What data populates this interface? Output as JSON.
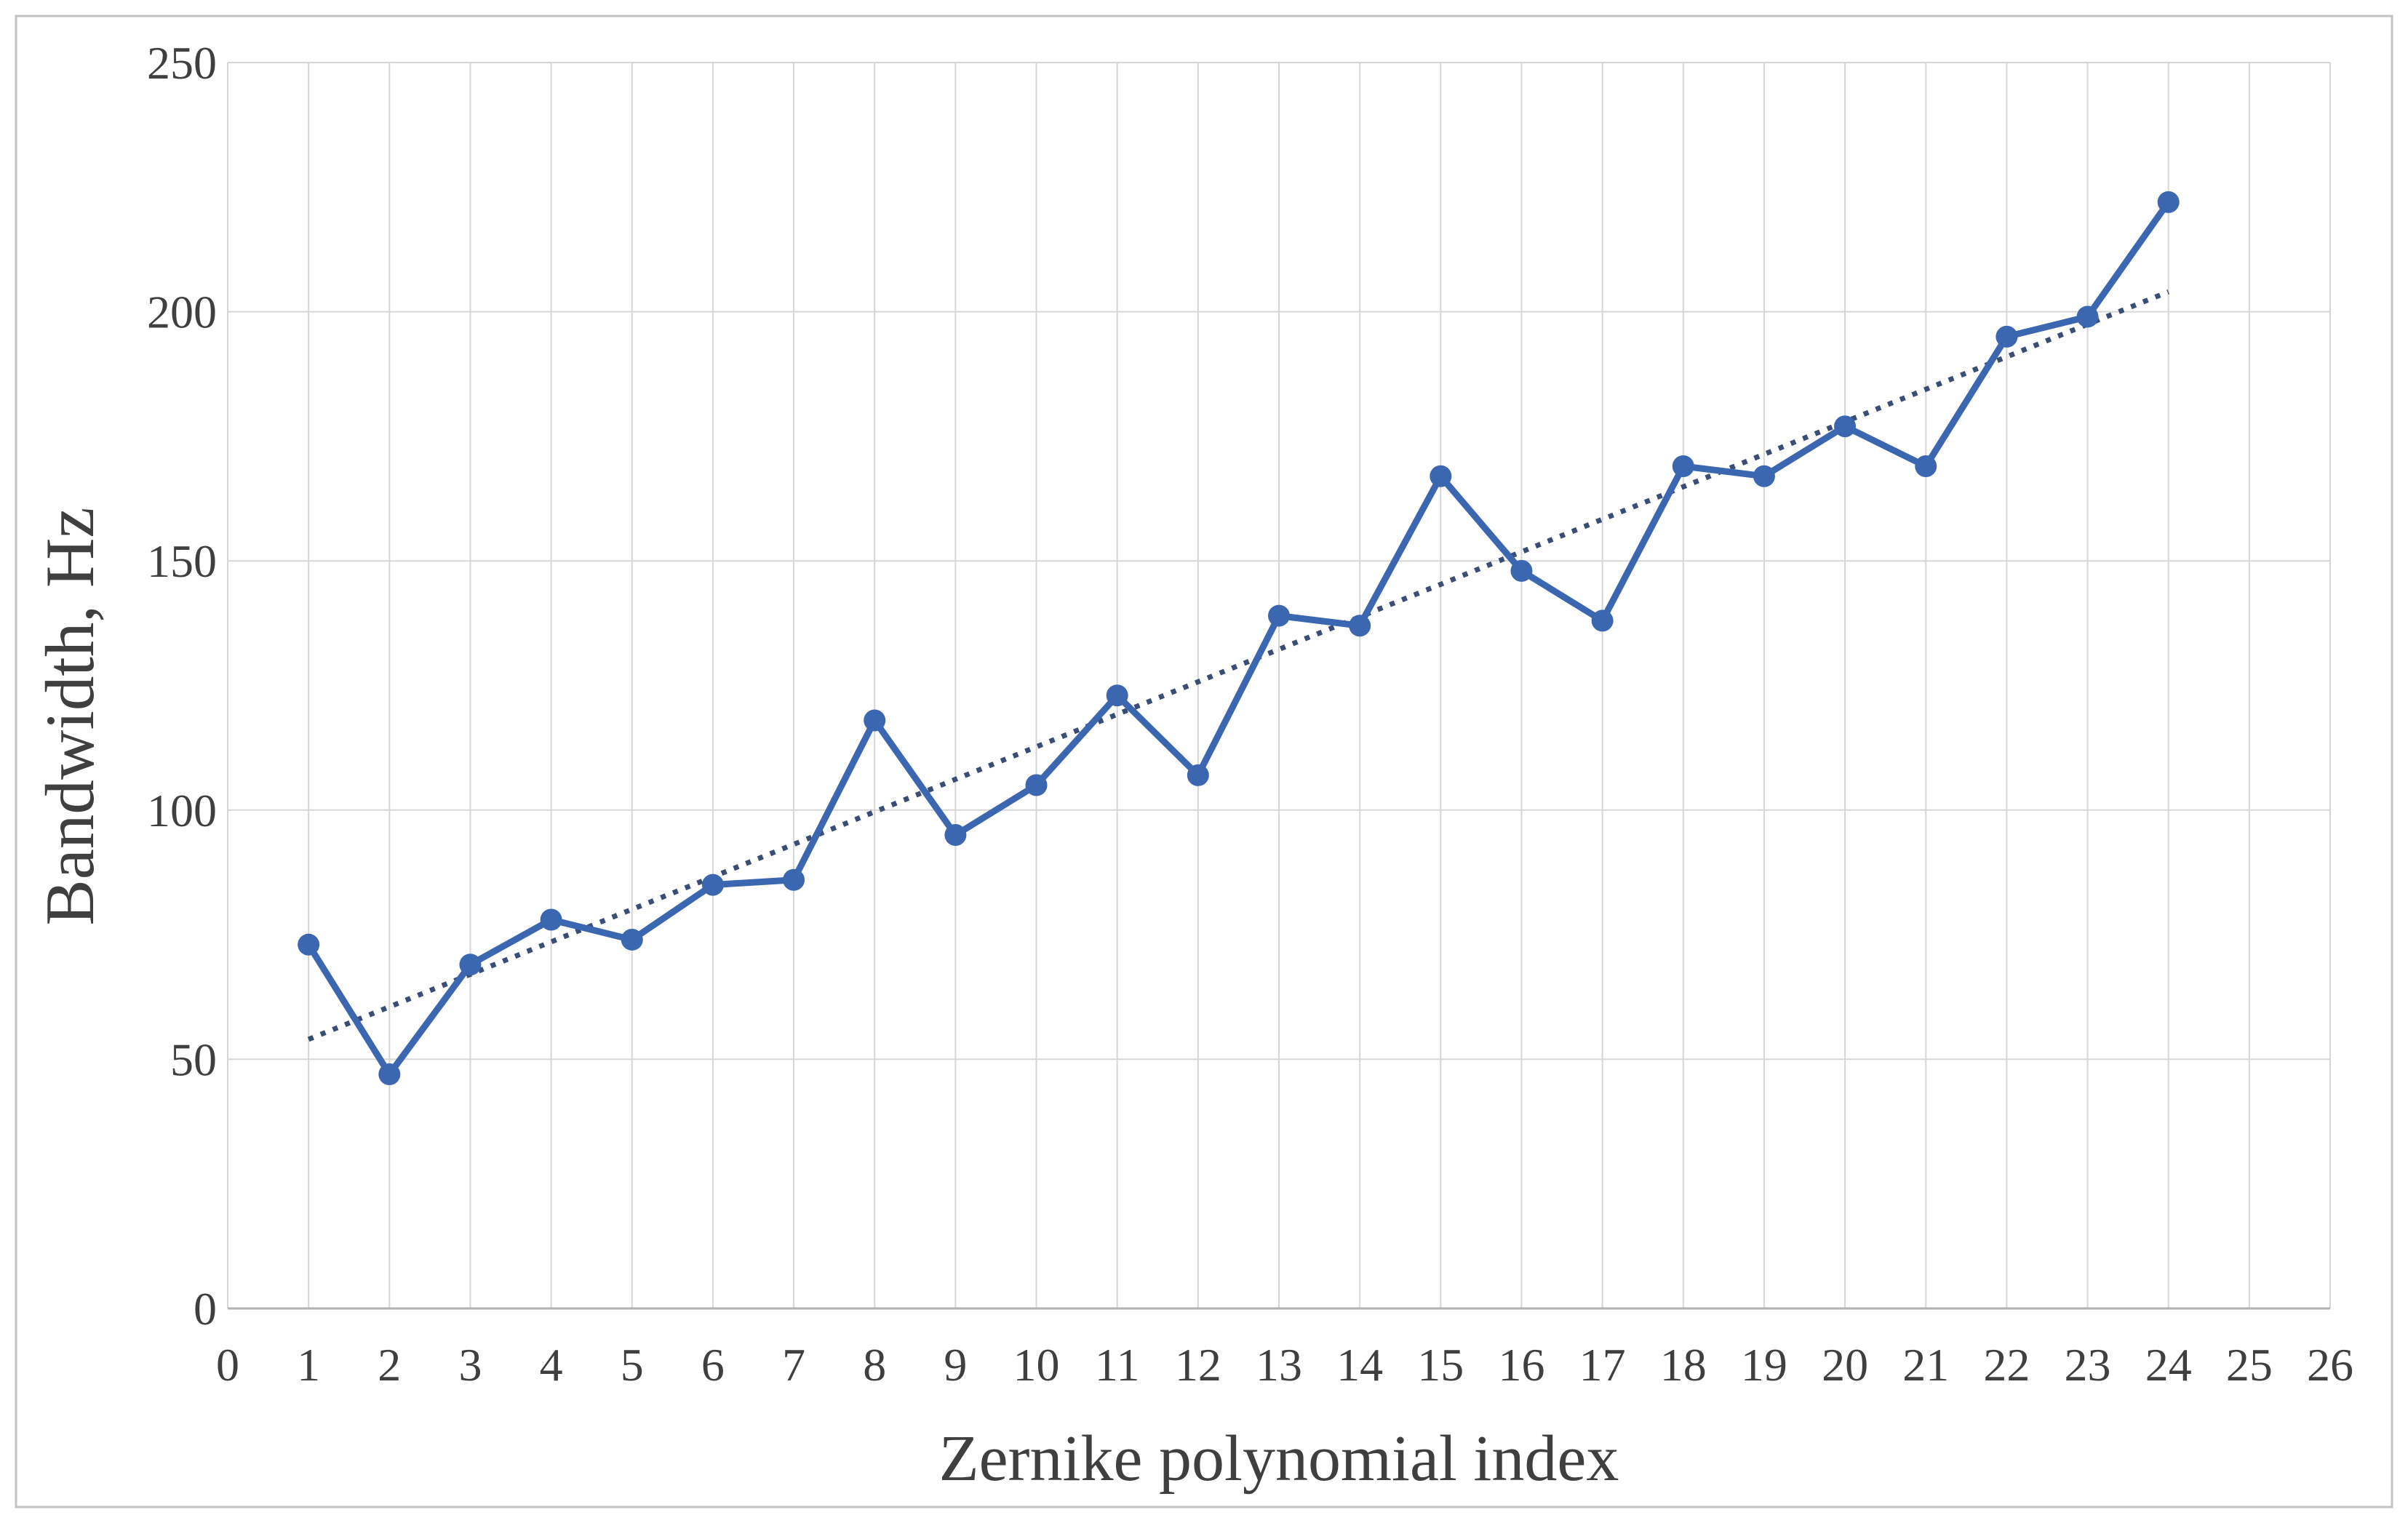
{
  "chart_data": {
    "type": "line",
    "title": "",
    "xlabel": "Zernike polynomial index",
    "ylabel": "Bandwidth, Hz",
    "xlim": [
      0,
      26
    ],
    "ylim": [
      0,
      250
    ],
    "x_ticks": [
      0,
      1,
      2,
      3,
      4,
      5,
      6,
      7,
      8,
      9,
      10,
      11,
      12,
      13,
      14,
      15,
      16,
      17,
      18,
      19,
      20,
      21,
      22,
      23,
      24,
      25,
      26
    ],
    "y_ticks": [
      0,
      50,
      100,
      150,
      200,
      250
    ],
    "grid": true,
    "legend": false,
    "x": [
      1,
      2,
      3,
      4,
      5,
      6,
      7,
      8,
      9,
      10,
      11,
      12,
      13,
      14,
      15,
      16,
      17,
      18,
      19,
      20,
      21,
      22,
      23,
      24
    ],
    "series": [
      {
        "name": "bandwidth",
        "style": "solid-line-with-circle-markers",
        "color": "#3b66b0",
        "values": [
          73,
          47,
          69,
          78,
          74,
          85,
          86,
          118,
          95,
          105,
          123,
          107,
          139,
          137,
          167,
          148,
          138,
          169,
          167,
          177,
          169,
          195,
          199,
          222
        ]
      },
      {
        "name": "linear-trend",
        "style": "dotted-line",
        "color": "#3a4d75",
        "x_start": 1,
        "y_start": 54,
        "x_end": 24,
        "y_end": 204
      }
    ],
    "colors": {
      "gridline": "#d6d6d6",
      "axis_line": "#b3b3b3",
      "text": "#3f3f3f",
      "frame_border": "#c2c2c2",
      "background": "#ffffff"
    }
  }
}
